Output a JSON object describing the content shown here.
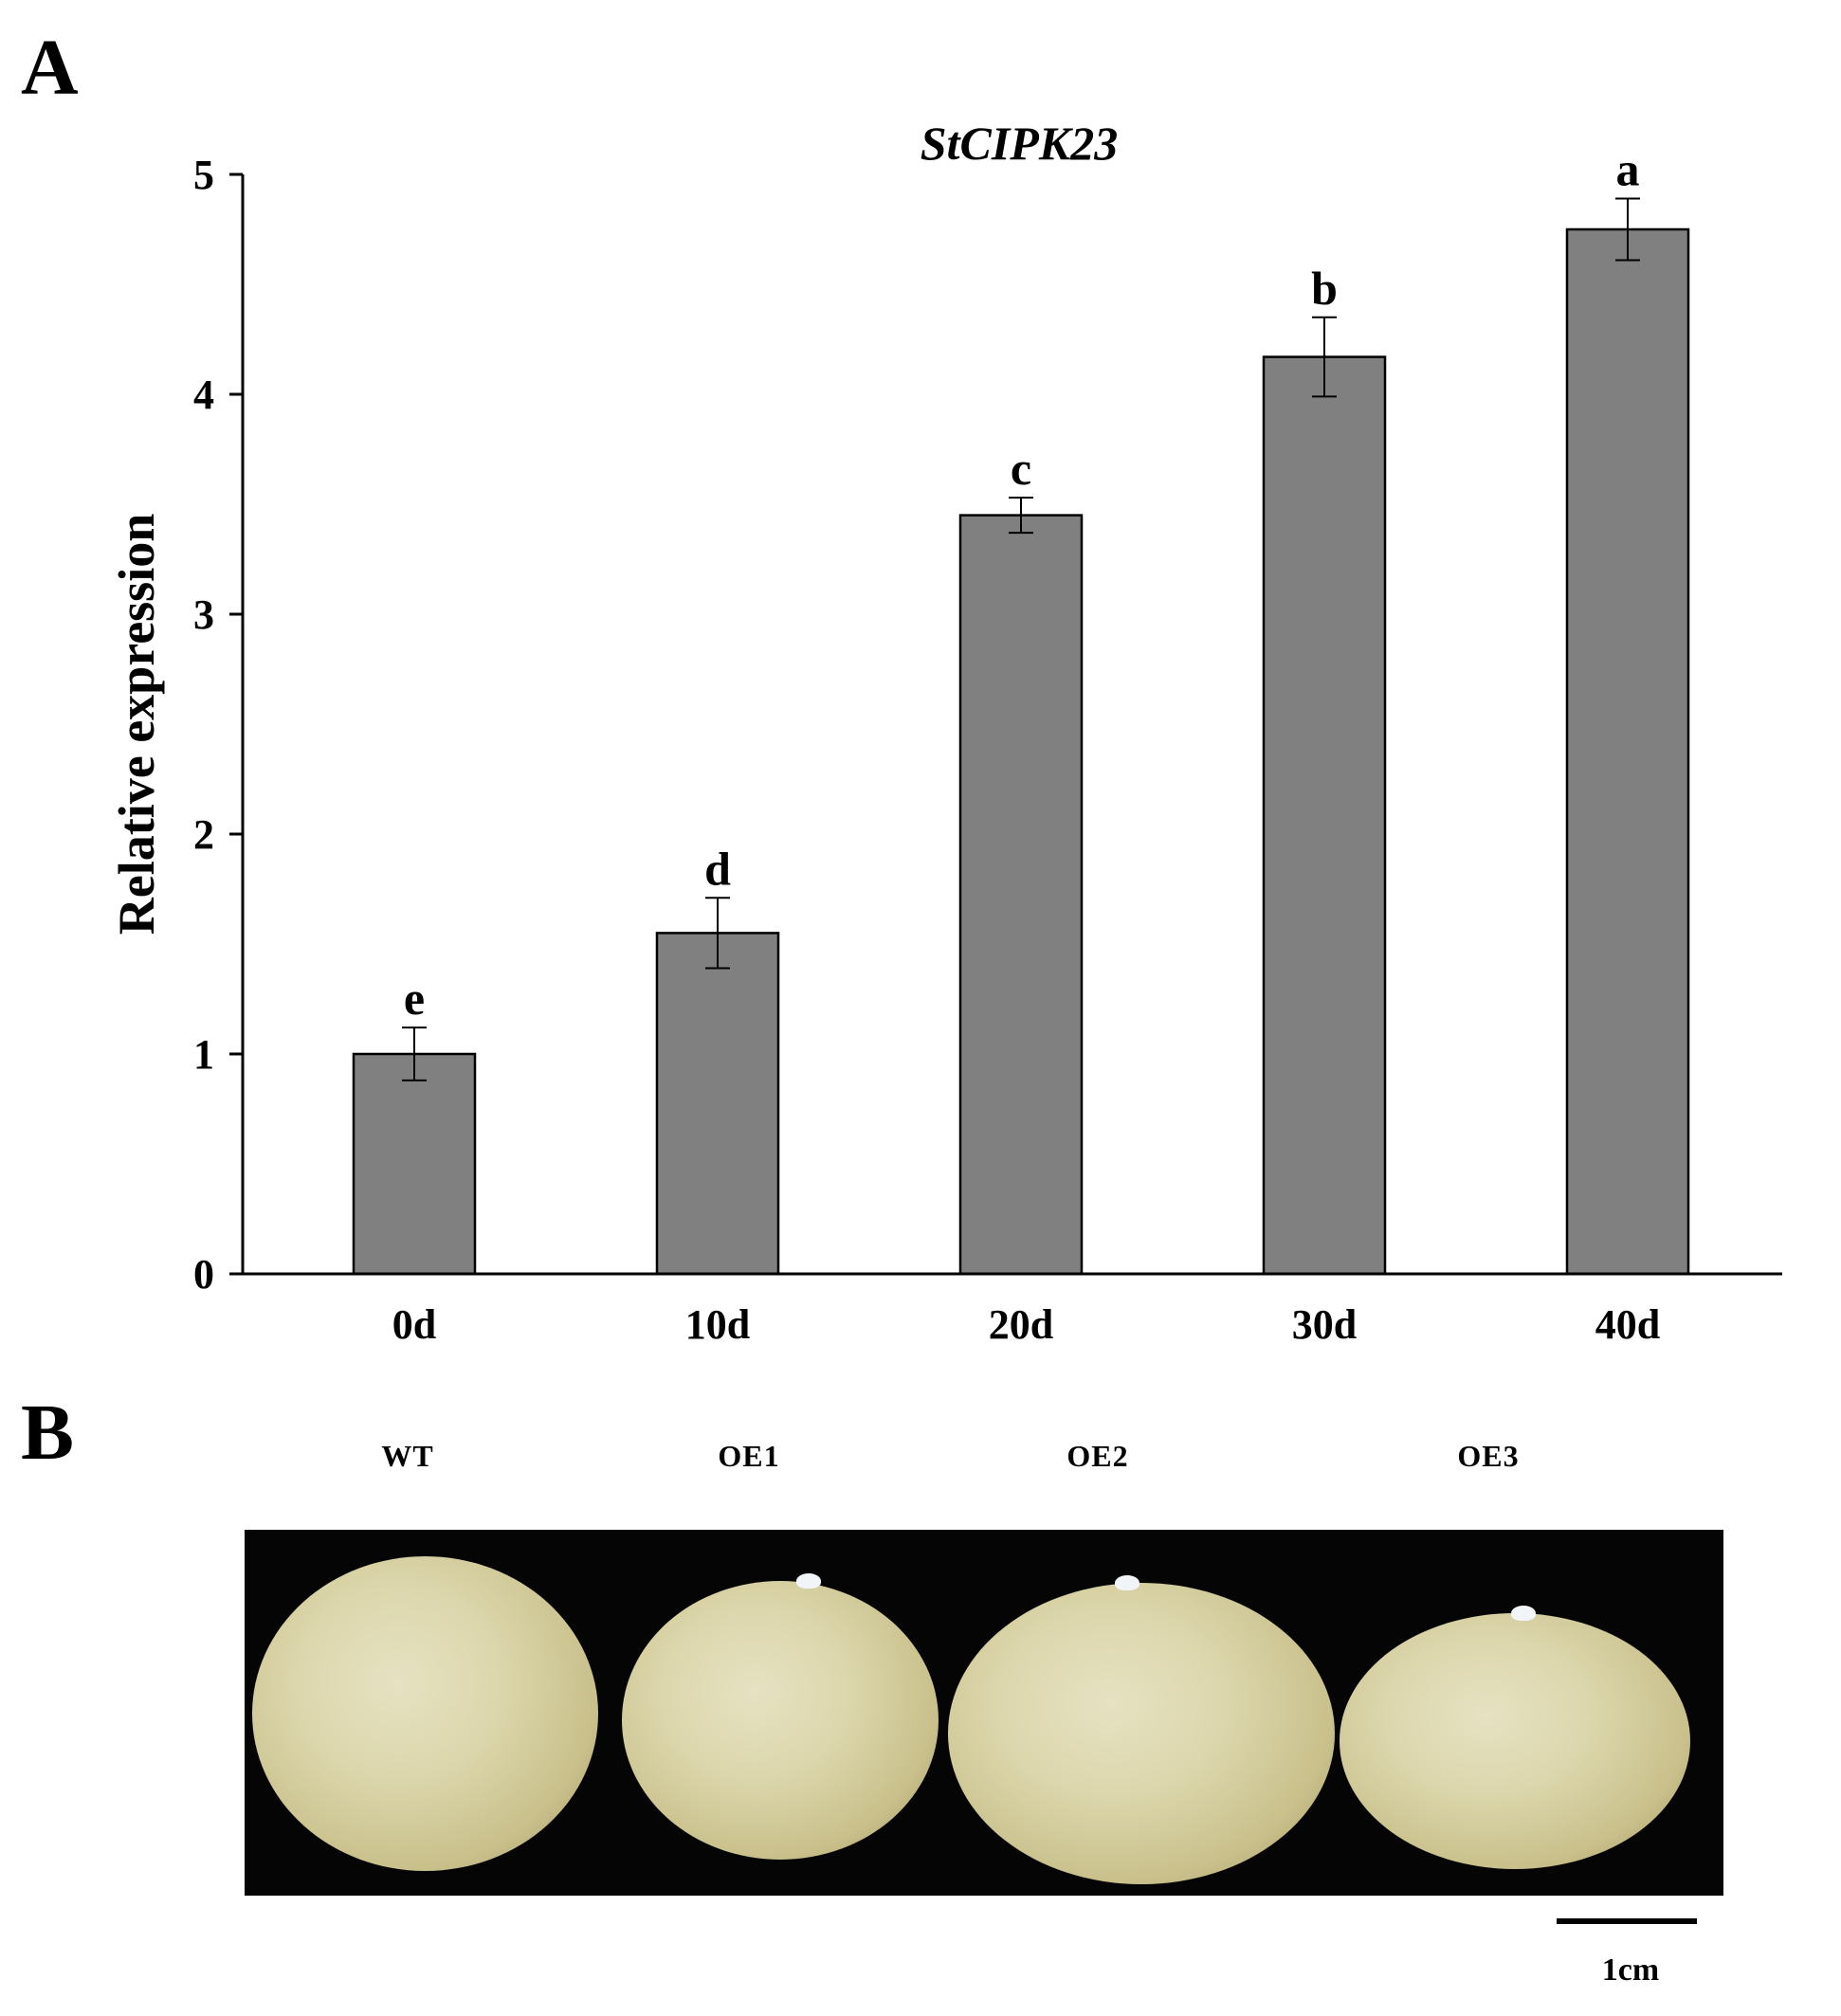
{
  "panels": {
    "a_label": "A",
    "b_label": "B"
  },
  "chart_data": {
    "type": "bar",
    "title": "StCIPK23",
    "xlabel": "",
    "ylabel": "Relative expression",
    "categories": [
      "0d",
      "10d",
      "20d",
      "30d",
      "40d"
    ],
    "values": [
      1.0,
      1.55,
      3.45,
      4.17,
      4.75
    ],
    "errors": [
      0.12,
      0.16,
      0.08,
      0.18,
      0.14
    ],
    "significance": [
      "e",
      "d",
      "c",
      "b",
      "a"
    ],
    "ylim": [
      0,
      5
    ],
    "yticks": [
      0,
      1,
      2,
      3,
      4,
      5
    ],
    "ytick_labels": [
      "0",
      "1",
      "2",
      "3",
      "4",
      "5"
    ],
    "bar_color": "#808080",
    "grid": false,
    "legend": "none"
  },
  "photo": {
    "genotypes": [
      "WT",
      "OE1",
      "OE2",
      "OE3"
    ],
    "background_color": "#050505",
    "tuber_color": "#dcd7ad",
    "scale_bar_label": "1cm"
  }
}
